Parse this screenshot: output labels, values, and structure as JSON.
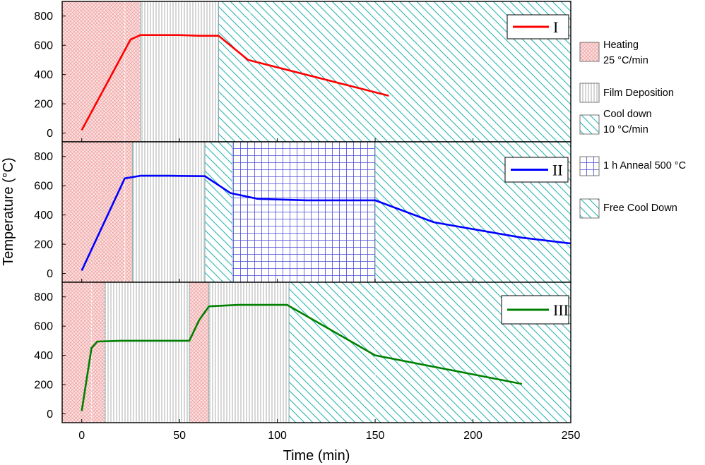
{
  "chart_data": {
    "type": "line",
    "xlabel": "Time (min)",
    "ylabel": "Temperature (°C)",
    "xlim": [
      -10,
      250
    ],
    "ylim": [
      -60,
      900
    ],
    "x_ticks": [
      0,
      50,
      100,
      150,
      200,
      250
    ],
    "y_ticks": [
      0,
      200,
      400,
      600,
      800
    ],
    "grid": false,
    "legend_regions": [
      {
        "id": "heating",
        "lines": [
          "Heating",
          "25 °C/min"
        ],
        "pattern": "crosshatch-red"
      },
      {
        "id": "deposition",
        "lines": [
          "Film Deposition"
        ],
        "pattern": "vertical-gray"
      },
      {
        "id": "cooldown",
        "lines": [
          "Cool down",
          "10 °C/min"
        ],
        "pattern": "diagonal-teal"
      },
      {
        "id": "anneal",
        "lines": [
          "1 h Anneal 500 °C"
        ],
        "pattern": "grid-blue"
      },
      {
        "id": "freecool",
        "lines": [
          "Free Cool Down"
        ],
        "pattern": "diagonal-teal"
      }
    ],
    "panels": [
      {
        "label": "I",
        "color": "#ff0000",
        "regions": [
          {
            "type": "heating",
            "x0": -10,
            "x1": 30
          },
          {
            "type": "deposition",
            "x0": 30,
            "x1": 70
          },
          {
            "type": "cooldown",
            "x0": 70,
            "x1": 250
          }
        ],
        "dividers": [
          22,
          86
        ],
        "series": {
          "x": [
            0,
            25,
            30,
            50,
            60,
            70,
            85,
            157
          ],
          "y": [
            20,
            640,
            670,
            670,
            665,
            665,
            500,
            255
          ]
        }
      },
      {
        "label": "II",
        "color": "#0000ff",
        "regions": [
          {
            "type": "heating",
            "x0": -10,
            "x1": 26
          },
          {
            "type": "deposition",
            "x0": 26,
            "x1": 63
          },
          {
            "type": "cooldown",
            "x0": 63,
            "x1": 77
          },
          {
            "type": "anneal",
            "x0": 77,
            "x1": 150
          },
          {
            "type": "freecool",
            "x0": 150,
            "x1": 250
          }
        ],
        "dividers": [
          22
        ],
        "series": {
          "x": [
            0,
            22,
            30,
            45,
            63,
            76,
            90,
            115,
            150,
            180,
            225,
            250
          ],
          "y": [
            20,
            650,
            668,
            668,
            665,
            550,
            510,
            500,
            500,
            350,
            245,
            205
          ]
        }
      },
      {
        "label": "III",
        "color": "#008000",
        "regions": [
          {
            "type": "heating",
            "x0": -10,
            "x1": 12
          },
          {
            "type": "deposition",
            "x0": 12,
            "x1": 55
          },
          {
            "type": "heating",
            "x0": 55,
            "x1": 65
          },
          {
            "type": "deposition",
            "x0": 65,
            "x1": 106
          },
          {
            "type": "cooldown",
            "x0": 106,
            "x1": 250
          }
        ],
        "dividers": [
          5,
          150
        ],
        "series": {
          "x": [
            0,
            5,
            8,
            20,
            55,
            60,
            65,
            80,
            105,
            150,
            225
          ],
          "y": [
            20,
            450,
            495,
            500,
            500,
            640,
            735,
            745,
            745,
            400,
            205
          ]
        }
      }
    ]
  }
}
